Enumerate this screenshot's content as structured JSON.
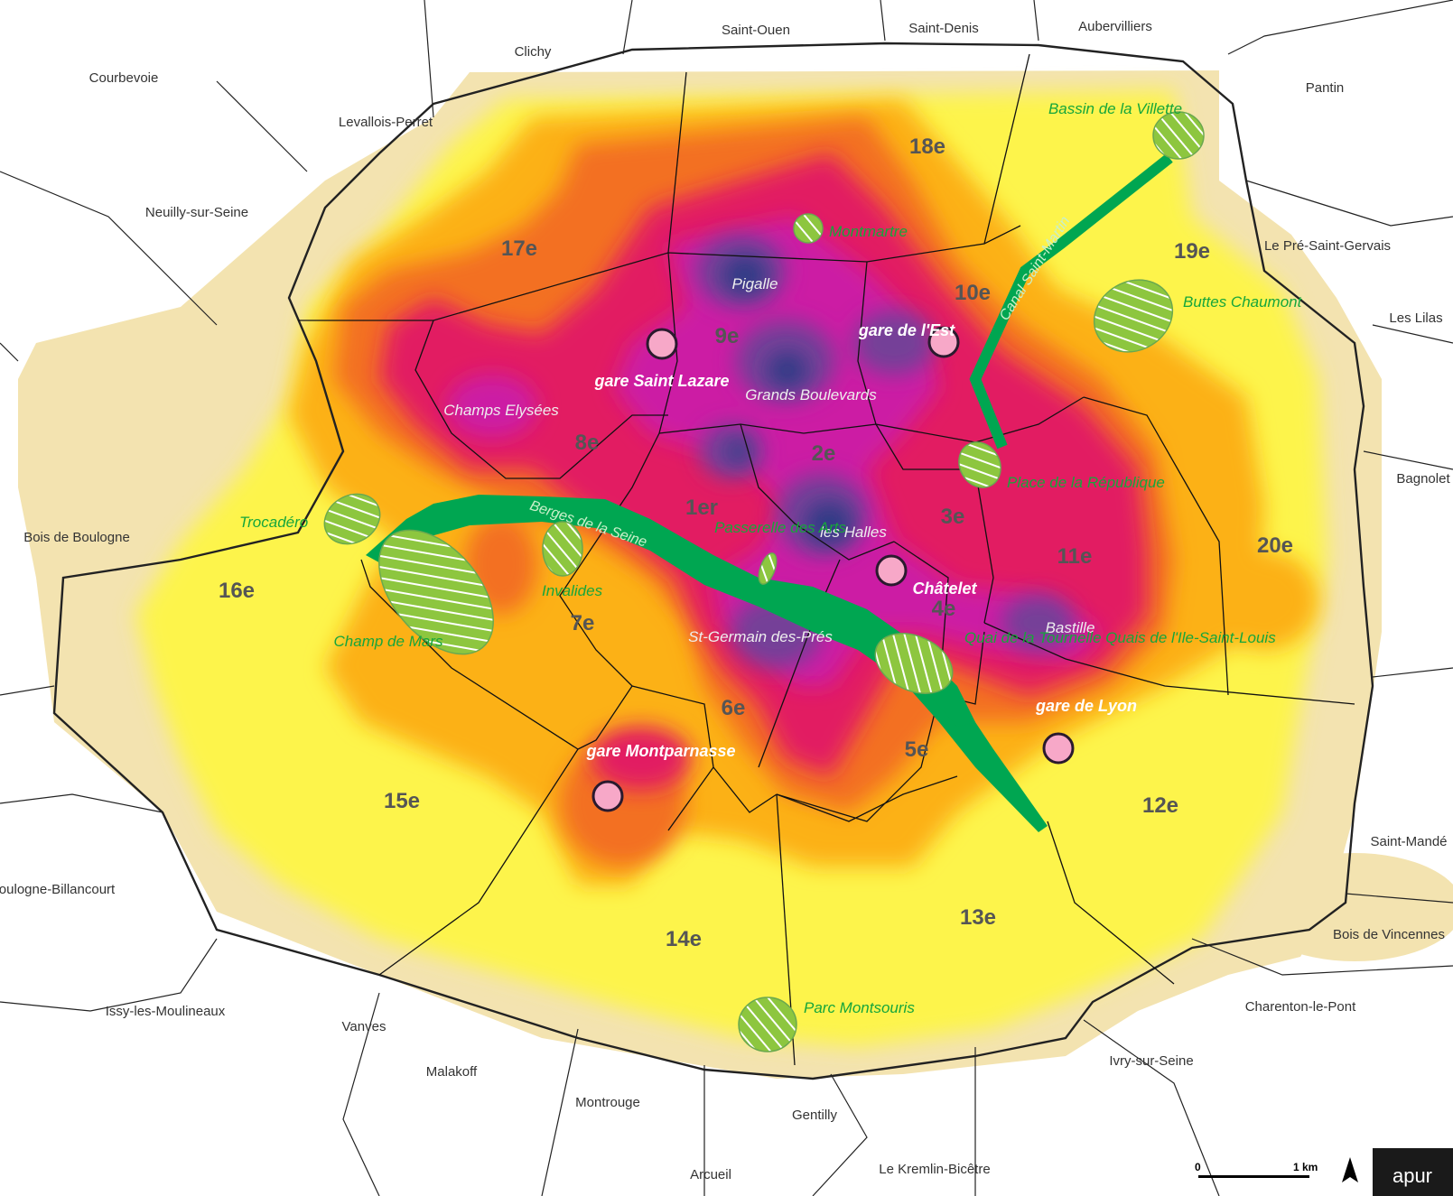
{
  "communes": [
    "Courbevoie",
    "Clichy",
    "Saint-Ouen",
    "Saint-Denis",
    "Aubervilliers",
    "Pantin",
    "Levallois-Perret",
    "Neuilly-sur-Seine",
    "Le Pré-Saint-Gervais",
    "Les Lilas",
    "Bagnolet",
    "Bois de Boulogne",
    "Boulogne-Billancourt",
    "Issy-les-Moulineaux",
    "Vanves",
    "Malakoff",
    "Montrouge",
    "Arcueil",
    "Gentilly",
    "Le Kremlin-Bicêtre",
    "Ivry-sur-Seine",
    "Charenton-le-Pont",
    "Bois de Vincennes",
    "Saint-Mandé"
  ],
  "arrondissements": [
    "1er",
    "2e",
    "3e",
    "4e",
    "5e",
    "6e",
    "7e",
    "8e",
    "9e",
    "10e",
    "11e",
    "12e",
    "13e",
    "14e",
    "15e",
    "16e",
    "17e",
    "18e",
    "19e",
    "20e"
  ],
  "hotspots": [
    "Pigalle",
    "Champs Elysées",
    "Grands Boulevards",
    "les Halles",
    "St-Germain des-Prés",
    "Bastille"
  ],
  "stations": [
    "gare Saint Lazare",
    "gare de l'Est",
    "Châtelet",
    "gare de Lyon",
    "gare Montparnasse"
  ],
  "green_spaces": [
    "Bassin de la Villette",
    "Montmartre",
    "Buttes Chaumont",
    "Trocadéro",
    "Invalides",
    "Champ de Mars",
    "Passerelle des Arts",
    "Place de la République",
    "Quai de la Tournelle Quais de l'Ile-Saint-Louis",
    "Parc Montsouris"
  ],
  "linear_features": [
    "Canal Saint-Martin",
    "Berges de la Seine"
  ],
  "scale": {
    "start": "0",
    "end": "1 km"
  },
  "north_arrow": "N",
  "logo": "apur",
  "colors": {
    "level1": "#f3e3b0",
    "level2": "#fdf44b",
    "level3": "#fcb117",
    "level4": "#f36f21",
    "level5": "#e21e62",
    "level6": "#cc1aa4",
    "level7": "#743f98",
    "level8": "#2f3a85",
    "green": "#00a651",
    "green_light": "#8dc63f",
    "station": "#f7a8c8"
  }
}
